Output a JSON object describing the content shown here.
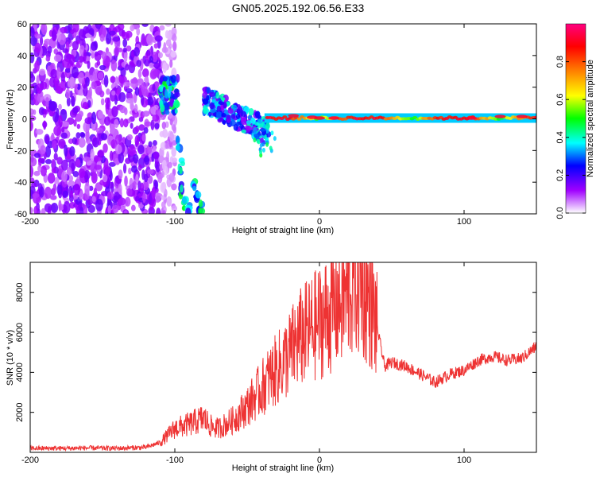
{
  "figure": {
    "title": "GN05.2025.192.06.56.E33"
  },
  "chart_data": [
    {
      "type": "heatmap",
      "title": "GN05.2025.192.06.56.E33",
      "xlabel": "Height of straight line (km)",
      "ylabel": "Frequency (Hz)",
      "xlim": [
        -200,
        150
      ],
      "ylim": [
        -60,
        60
      ],
      "x_ticks": [
        -200,
        -100,
        0,
        100
      ],
      "y_ticks": [
        -60,
        -40,
        -20,
        0,
        20,
        40,
        60
      ],
      "x_tick_labels": [
        "-200",
        "-100",
        "0",
        "100"
      ],
      "y_tick_labels": [
        "-60",
        "-40",
        "-20",
        "0",
        "20",
        "40",
        "60"
      ],
      "colorbar": {
        "label": "Normalized spectral amplitude",
        "range": [
          0.0,
          1.0
        ],
        "ticks": [
          0.0,
          0.2,
          0.4,
          0.6,
          0.8
        ],
        "tick_labels": [
          "0.0",
          "0.2",
          "0.4",
          "0.6",
          "0.8"
        ],
        "colormap": [
          "#ffffff",
          "#a000ff",
          "#0000ff",
          "#00ffff",
          "#00ff00",
          "#ffff00",
          "#ff8000",
          "#ff0000",
          "#ff0080"
        ]
      },
      "features": [
        {
          "name": "noise",
          "x_range": [
            -200,
            -110
          ],
          "y_range": [
            -60,
            60
          ],
          "amplitude": 0.15
        },
        {
          "name": "echo-main",
          "x_range": [
            -110,
            -95
          ],
          "y_range": [
            5,
            28
          ],
          "amplitude": 0.45
        },
        {
          "name": "echo-down",
          "x_range": [
            -98,
            -82
          ],
          "y_range": [
            -60,
            -10
          ],
          "amplitude": 0.4
        },
        {
          "name": "trail-curve",
          "x_range": [
            -80,
            -35
          ],
          "y_range": [
            -15,
            20
          ],
          "amplitude": 0.45
        },
        {
          "name": "trail-center",
          "x_range": [
            -35,
            150
          ],
          "y_range": [
            -2,
            3
          ],
          "amplitude": 0.9
        }
      ]
    },
    {
      "type": "line",
      "xlabel": "Height of straight line (km)",
      "ylabel": "SNR (10 * v/v)",
      "xlim": [
        -200,
        150
      ],
      "ylim": [
        0,
        9500
      ],
      "x_ticks": [
        -200,
        -100,
        0,
        100
      ],
      "y_ticks": [
        2000,
        4000,
        6000,
        8000
      ],
      "x_tick_labels": [
        "-200",
        "-100",
        "0",
        "100"
      ],
      "y_tick_labels": [
        "2000",
        "4000",
        "6000",
        "8000"
      ],
      "color": "#ee3333",
      "series": [
        {
          "x": [
            -200,
            -180,
            -160,
            -140,
            -120,
            -110,
            -100,
            -90,
            -80,
            -75,
            -70,
            -60,
            -50,
            -40,
            -35,
            -30,
            -25,
            -20,
            -15,
            -10,
            0,
            10,
            20,
            25,
            30,
            35,
            40,
            45,
            50,
            60,
            70,
            80,
            90,
            100,
            110,
            120,
            130,
            140,
            150
          ],
          "y": [
            200,
            200,
            220,
            200,
            250,
            500,
            1200,
            1400,
            1700,
            1300,
            1200,
            1600,
            2300,
            3200,
            3700,
            4100,
            4500,
            5000,
            5600,
            5900,
            6500,
            7200,
            8000,
            8600,
            8200,
            7500,
            6200,
            4300,
            4500,
            4300,
            3900,
            3500,
            3900,
            4100,
            4600,
            4800,
            4600,
            4700,
            5300
          ]
        }
      ]
    }
  ]
}
